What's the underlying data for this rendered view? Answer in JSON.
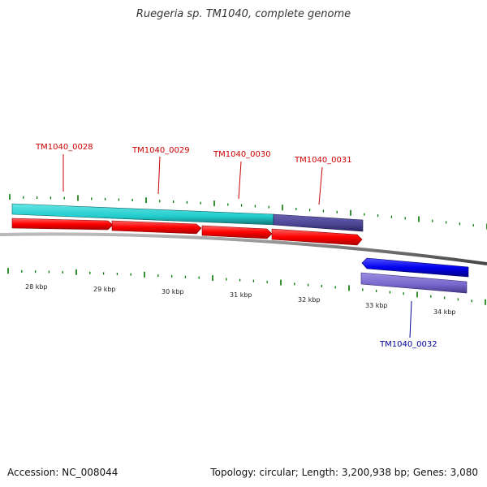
{
  "title": "Ruegeria sp. TM1040, complete genome",
  "footer": {
    "accession": "Accession: NC_008044",
    "summary": "Topology: circular; Length: 3,200,938 bp; Genes: 3,080"
  },
  "genes_top": [
    {
      "label": "TM1040_0028",
      "color": "#cc0000"
    },
    {
      "label": "TM1040_0029",
      "color": "#cc0000"
    },
    {
      "label": "TM1040_0030",
      "color": "#cc0000"
    },
    {
      "label": "TM1040_0031",
      "color": "#cc0000"
    }
  ],
  "genes_bottom": [
    {
      "label": "TM1040_0032",
      "color": "#000099"
    }
  ],
  "scale_labels": [
    "28 kbp",
    "29 kbp",
    "30 kbp",
    "31 kbp",
    "32 kbp",
    "33 kbp",
    "34 kbp"
  ],
  "colors": {
    "cds_forward": "#ff0000",
    "cds_reverse": "#0000ee",
    "gene_bar": "#22cccc",
    "gene_bar_alt": "#4b4494",
    "gene_bar_reverse": "#7766cc",
    "backbone": "#888888",
    "tick": "#007700"
  }
}
